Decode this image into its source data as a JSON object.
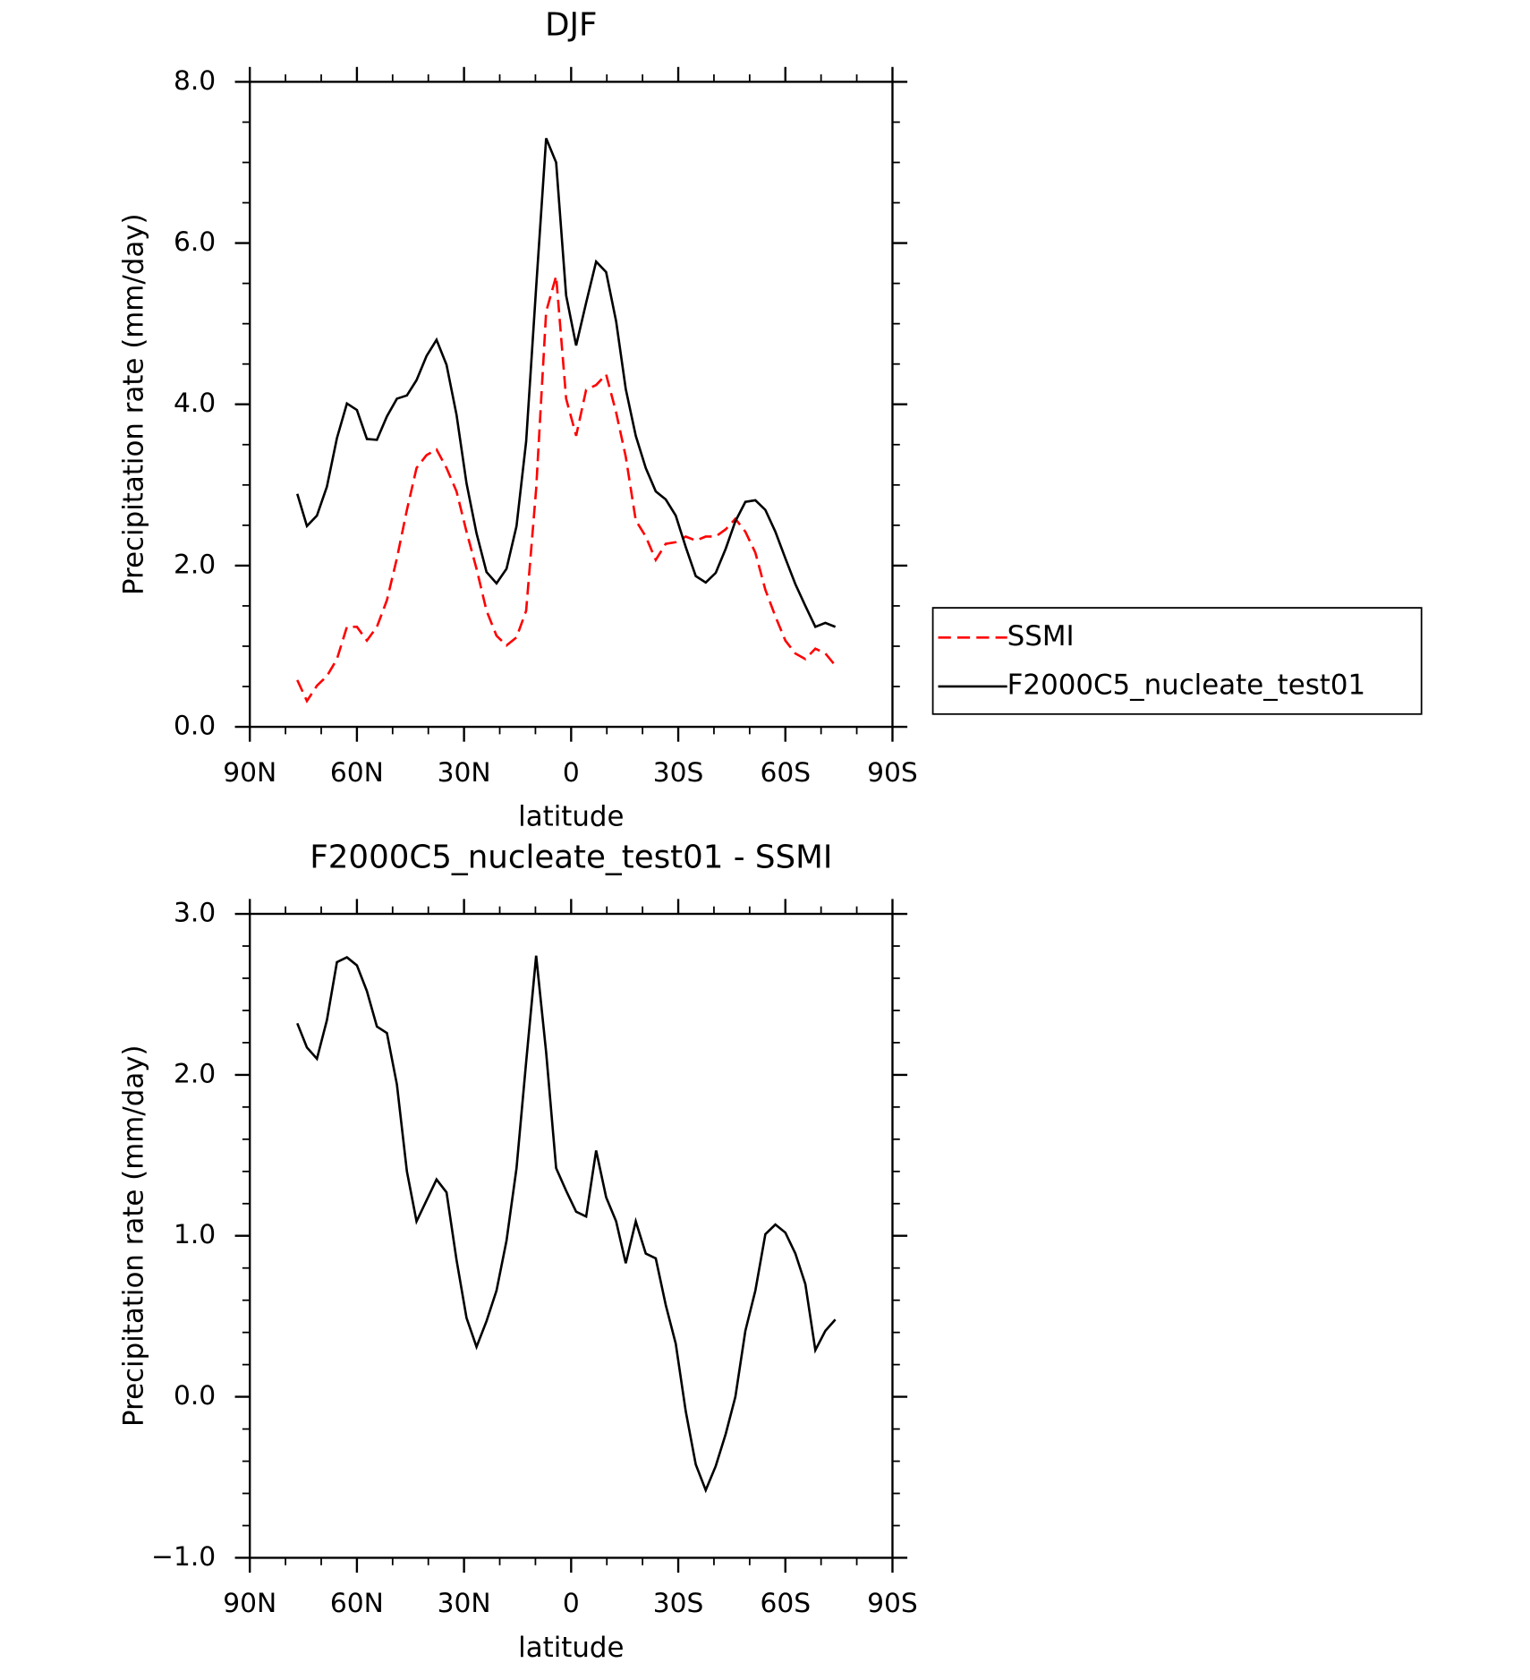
{
  "chart_data": [
    {
      "type": "line",
      "title": "DJF",
      "xlabel": "latitude",
      "ylabel": "Precipitation rate (mm/day)",
      "x": [
        76.7,
        74.0,
        71.2,
        68.4,
        65.6,
        62.8,
        60.0,
        57.2,
        54.4,
        51.6,
        48.8,
        46.0,
        43.3,
        40.5,
        37.7,
        34.9,
        32.1,
        29.3,
        26.5,
        23.7,
        20.9,
        18.1,
        15.3,
        12.6,
        9.8,
        7.0,
        4.2,
        1.4,
        -1.4,
        -4.2,
        -7.0,
        -9.8,
        -12.6,
        -15.3,
        -18.1,
        -20.9,
        -23.7,
        -26.5,
        -29.3,
        -32.1,
        -34.9,
        -37.7,
        -40.5,
        -43.3,
        -46.0,
        -48.8,
        -51.6,
        -54.4,
        -57.2,
        -60.0,
        -62.8,
        -65.6,
        -68.4,
        -71.2,
        -74.0
      ],
      "series": [
        {
          "name": "SSMI",
          "color": "#ff0000",
          "dash": true,
          "values": [
            0.58,
            0.32,
            0.51,
            0.63,
            0.84,
            1.24,
            1.24,
            1.07,
            1.24,
            1.57,
            2.09,
            2.69,
            3.21,
            3.37,
            3.44,
            3.21,
            2.92,
            2.42,
            1.96,
            1.44,
            1.13,
            1.01,
            1.11,
            1.44,
            2.95,
            5.15,
            5.59,
            4.07,
            3.61,
            4.18,
            4.24,
            4.37,
            3.9,
            3.35,
            2.56,
            2.36,
            2.07,
            2.27,
            2.29,
            2.36,
            2.31,
            2.36,
            2.36,
            2.45,
            2.58,
            2.42,
            2.16,
            1.7,
            1.37,
            1.07,
            0.91,
            0.84,
            0.97,
            0.91,
            0.76
          ]
        },
        {
          "name": "F2000C5_nucleate_test01",
          "color": "#000000",
          "dash": false,
          "values": [
            2.89,
            2.49,
            2.62,
            2.98,
            3.58,
            4.01,
            3.93,
            3.57,
            3.56,
            3.85,
            4.07,
            4.11,
            4.3,
            4.6,
            4.8,
            4.49,
            3.87,
            3.02,
            2.4,
            1.92,
            1.78,
            1.96,
            2.49,
            3.54,
            5.45,
            7.3,
            7.0,
            5.35,
            4.73,
            5.26,
            5.77,
            5.64,
            5.03,
            4.19,
            3.61,
            3.21,
            2.92,
            2.82,
            2.62,
            2.23,
            1.87,
            1.79,
            1.91,
            2.21,
            2.55,
            2.79,
            2.81,
            2.69,
            2.42,
            2.09,
            1.77,
            1.5,
            1.24,
            1.29,
            1.24
          ]
        }
      ],
      "xlim": [
        90,
        -90
      ],
      "xticks": [
        {
          "value": 90,
          "label": "90N"
        },
        {
          "value": 60,
          "label": "60N"
        },
        {
          "value": 30,
          "label": "30N"
        },
        0,
        {
          "value": -30,
          "label": "30S"
        },
        {
          "value": -60,
          "label": "60S"
        },
        {
          "value": -90,
          "label": "90S"
        }
      ],
      "minor_xticks": [
        80,
        70,
        50,
        40,
        20,
        10,
        -10,
        -20,
        -40,
        -50,
        -70,
        -80
      ],
      "ylim": [
        0,
        8
      ],
      "yticks": [
        {
          "value": 0,
          "label": "0.0"
        },
        {
          "value": 2,
          "label": "2.0"
        },
        {
          "value": 4,
          "label": "4.0"
        },
        {
          "value": 6,
          "label": "6.0"
        },
        {
          "value": 8,
          "label": "8.0"
        }
      ],
      "minor_yticks": [
        0.5,
        1,
        1.5,
        2.5,
        3,
        3.5,
        4.5,
        5,
        5.5,
        6.5,
        7,
        7.5
      ],
      "legend": "right"
    },
    {
      "type": "line",
      "title": "F2000C5_nucleate_test01 - SSMI",
      "xlabel": "latitude",
      "ylabel": "Precipitation rate (mm/day)",
      "x": [
        76.7,
        74.0,
        71.2,
        68.4,
        65.6,
        62.8,
        60.0,
        57.2,
        54.4,
        51.6,
        48.8,
        46.0,
        43.3,
        40.5,
        37.7,
        34.9,
        32.1,
        29.3,
        26.5,
        23.7,
        20.9,
        18.1,
        15.3,
        12.6,
        9.8,
        7.0,
        4.2,
        1.4,
        -1.4,
        -4.2,
        -7.0,
        -9.8,
        -12.6,
        -15.3,
        -18.1,
        -20.9,
        -23.7,
        -26.5,
        -29.3,
        -32.1,
        -34.9,
        -37.7,
        -40.5,
        -43.3,
        -46.0,
        -48.8,
        -51.6,
        -54.4,
        -57.2,
        -60.0,
        -62.8,
        -65.6,
        -68.4,
        -71.2,
        -74.0
      ],
      "series": [
        {
          "color": "#000000",
          "dash": false,
          "values": [
            2.32,
            2.17,
            2.1,
            2.34,
            2.7,
            2.73,
            2.68,
            2.52,
            2.3,
            2.26,
            1.94,
            1.4,
            1.09,
            1.22,
            1.35,
            1.27,
            0.85,
            0.49,
            0.31,
            0.47,
            0.66,
            0.97,
            1.42,
            2.08,
            2.74,
            2.14,
            1.42,
            1.28,
            1.15,
            1.12,
            1.53,
            1.24,
            1.09,
            0.83,
            1.09,
            0.89,
            0.86,
            0.57,
            0.33,
            -0.09,
            -0.42,
            -0.58,
            -0.43,
            -0.23,
            0.0,
            0.41,
            0.66,
            1.01,
            1.07,
            1.02,
            0.89,
            0.7,
            0.29,
            0.41,
            0.48
          ]
        }
      ],
      "xlim": [
        90,
        -90
      ],
      "xticks": [
        {
          "value": 90,
          "label": "90N"
        },
        {
          "value": 60,
          "label": "60N"
        },
        {
          "value": 30,
          "label": "30N"
        },
        0,
        {
          "value": -30,
          "label": "30S"
        },
        {
          "value": -60,
          "label": "60S"
        },
        {
          "value": -90,
          "label": "90S"
        }
      ],
      "minor_xticks": [
        80,
        70,
        50,
        40,
        20,
        10,
        -10,
        -20,
        -40,
        -50,
        -70,
        -80
      ],
      "ylim": [
        -1,
        3
      ],
      "yticks": [
        {
          "value": -1,
          "label": "−1.0"
        },
        {
          "value": 0,
          "label": "0.0"
        },
        {
          "value": 1,
          "label": "1.0"
        },
        {
          "value": 2,
          "label": "2.0"
        },
        {
          "value": 3,
          "label": "3.0"
        }
      ],
      "minor_yticks": [
        -0.8,
        -0.6,
        -0.4,
        -0.2,
        0.2,
        0.4,
        0.6,
        0.8,
        1.2,
        1.4,
        1.6,
        1.8,
        2.2,
        2.4,
        2.6,
        2.8
      ]
    }
  ]
}
